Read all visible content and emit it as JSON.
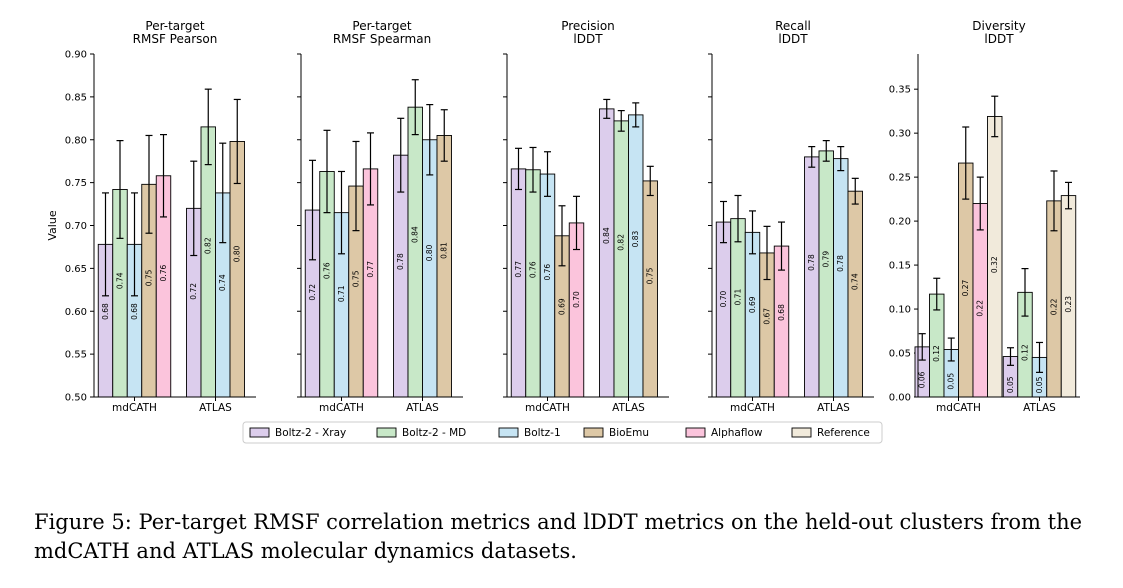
{
  "legend": [
    {
      "name": "Boltz-2 - Xray",
      "color": "#dccdec"
    },
    {
      "name": "Boltz-2 - MD",
      "color": "#c8e8c8"
    },
    {
      "name": "Boltz-1",
      "color": "#c6e4f3"
    },
    {
      "name": "BioEmu",
      "color": "#ddc8a6"
    },
    {
      "name": "Alphaflow",
      "color": "#fbc4dc"
    },
    {
      "name": "Reference",
      "color": "#f1eadb"
    }
  ],
  "caption": "Figure 5:   Per-target RMSF correlation metrics and lDDT metrics on the held-out clusters from the mdCATH and ATLAS molecular dynamics datasets.",
  "chart_data": [
    {
      "type": "bar",
      "title": "Per-target\nRMSF Pearson",
      "ylabel": "Value",
      "ylim": [
        0.5,
        0.9
      ],
      "yticks": [
        "0.50",
        "0.55",
        "0.60",
        "0.65",
        "0.70",
        "0.75",
        "0.80",
        "0.85",
        "0.90"
      ],
      "categories": [
        "mdCATH",
        "ATLAS"
      ],
      "series": [
        {
          "name": "Boltz-2 - Xray",
          "values": [
            0.678,
            0.72
          ],
          "errors": [
            0.06,
            0.055
          ],
          "labels": [
            "0.68",
            "0.72"
          ]
        },
        {
          "name": "Boltz-2 - MD",
          "values": [
            0.742,
            0.815
          ],
          "errors": [
            0.057,
            0.044
          ],
          "labels": [
            "0.74",
            "0.82"
          ]
        },
        {
          "name": "Boltz-1",
          "values": [
            0.678,
            0.738
          ],
          "errors": [
            0.06,
            0.058
          ],
          "labels": [
            "0.68",
            "0.74"
          ]
        },
        {
          "name": "BioEmu",
          "values": [
            0.748,
            0.798
          ],
          "errors": [
            0.057,
            0.049
          ],
          "labels": [
            "0.75",
            "0.80"
          ]
        },
        {
          "name": "Alphaflow",
          "values": [
            0.758,
            null
          ],
          "errors": [
            0.048,
            null
          ],
          "labels": [
            "0.76",
            ""
          ]
        },
        {
          "name": "Reference",
          "values": [
            null,
            null
          ],
          "errors": [
            null,
            null
          ],
          "labels": [
            "",
            ""
          ]
        }
      ]
    },
    {
      "type": "bar",
      "title": "Per-target\nRMSF Spearman",
      "ylim": [
        0.5,
        0.9
      ],
      "categories": [
        "mdCATH",
        "ATLAS"
      ],
      "series": [
        {
          "name": "Boltz-2 - Xray",
          "values": [
            0.718,
            0.782
          ],
          "errors": [
            0.058,
            0.043
          ],
          "labels": [
            "0.72",
            "0.78"
          ]
        },
        {
          "name": "Boltz-2 - MD",
          "values": [
            0.763,
            0.838
          ],
          "errors": [
            0.048,
            0.032
          ],
          "labels": [
            "0.76",
            "0.84"
          ]
        },
        {
          "name": "Boltz-1",
          "values": [
            0.715,
            0.8
          ],
          "errors": [
            0.048,
            0.041
          ],
          "labels": [
            "0.71",
            "0.80"
          ]
        },
        {
          "name": "BioEmu",
          "values": [
            0.746,
            0.805
          ],
          "errors": [
            0.052,
            0.03
          ],
          "labels": [
            "0.75",
            "0.81"
          ]
        },
        {
          "name": "Alphaflow",
          "values": [
            0.766,
            null
          ],
          "errors": [
            0.042,
            null
          ],
          "labels": [
            "0.77",
            ""
          ]
        },
        {
          "name": "Reference",
          "values": [
            null,
            null
          ],
          "errors": [
            null,
            null
          ],
          "labels": [
            "",
            ""
          ]
        }
      ]
    },
    {
      "type": "bar",
      "title": "Precision\nlDDT",
      "ylim": [
        0.5,
        0.9
      ],
      "categories": [
        "mdCATH",
        "ATLAS"
      ],
      "series": [
        {
          "name": "Boltz-2 - Xray",
          "values": [
            0.766,
            0.836
          ],
          "errors": [
            0.024,
            0.011
          ],
          "labels": [
            "0.77",
            "0.84"
          ]
        },
        {
          "name": "Boltz-2 - MD",
          "values": [
            0.765,
            0.822
          ],
          "errors": [
            0.026,
            0.012
          ],
          "labels": [
            "0.76",
            "0.82"
          ]
        },
        {
          "name": "Boltz-1",
          "values": [
            0.76,
            0.829
          ],
          "errors": [
            0.026,
            0.014
          ],
          "labels": [
            "0.76",
            "0.83"
          ]
        },
        {
          "name": "BioEmu",
          "values": [
            0.688,
            0.752
          ],
          "errors": [
            0.035,
            0.017
          ],
          "labels": [
            "0.69",
            "0.75"
          ]
        },
        {
          "name": "Alphaflow",
          "values": [
            0.703,
            null
          ],
          "errors": [
            0.031,
            null
          ],
          "labels": [
            "0.70",
            ""
          ]
        },
        {
          "name": "Reference",
          "values": [
            null,
            null
          ],
          "errors": [
            null,
            null
          ],
          "labels": [
            "",
            ""
          ]
        }
      ]
    },
    {
      "type": "bar",
      "title": "Recall\nlDDT",
      "ylim": [
        0.5,
        0.9
      ],
      "categories": [
        "mdCATH",
        "ATLAS"
      ],
      "series": [
        {
          "name": "Boltz-2 - Xray",
          "values": [
            0.704,
            0.78
          ],
          "errors": [
            0.024,
            0.012
          ],
          "labels": [
            "0.70",
            "0.78"
          ]
        },
        {
          "name": "Boltz-2 - MD",
          "values": [
            0.708,
            0.787
          ],
          "errors": [
            0.027,
            0.012
          ],
          "labels": [
            "0.71",
            "0.79"
          ]
        },
        {
          "name": "Boltz-1",
          "values": [
            0.692,
            0.778
          ],
          "errors": [
            0.025,
            0.014
          ],
          "labels": [
            "0.69",
            "0.78"
          ]
        },
        {
          "name": "BioEmu",
          "values": [
            0.668,
            0.74
          ],
          "errors": [
            0.031,
            0.015
          ],
          "labels": [
            "0.67",
            "0.74"
          ]
        },
        {
          "name": "Alphaflow",
          "values": [
            0.676,
            null
          ],
          "errors": [
            0.028,
            null
          ],
          "labels": [
            "0.68",
            ""
          ]
        },
        {
          "name": "Reference",
          "values": [
            null,
            null
          ],
          "errors": [
            null,
            null
          ],
          "labels": [
            "",
            ""
          ]
        }
      ]
    },
    {
      "type": "bar",
      "title": "Diversity\nlDDT",
      "ylim": [
        0.0,
        0.39
      ],
      "yticks": [
        "0.00",
        "0.05",
        "0.10",
        "0.15",
        "0.20",
        "0.25",
        "0.30",
        "0.35"
      ],
      "categories": [
        "mdCATH",
        "ATLAS"
      ],
      "series": [
        {
          "name": "Boltz-2 - Xray",
          "values": [
            0.057,
            0.046
          ],
          "errors": [
            0.015,
            0.01
          ],
          "labels": [
            "0.06",
            "0.05"
          ]
        },
        {
          "name": "Boltz-2 - MD",
          "values": [
            0.117,
            0.119
          ],
          "errors": [
            0.018,
            0.027
          ],
          "labels": [
            "0.12",
            "0.12"
          ]
        },
        {
          "name": "Boltz-1",
          "values": [
            0.054,
            0.045
          ],
          "errors": [
            0.013,
            0.017
          ],
          "labels": [
            "0.05",
            "0.05"
          ]
        },
        {
          "name": "BioEmu",
          "values": [
            0.266,
            0.223
          ],
          "errors": [
            0.041,
            0.034
          ],
          "labels": [
            "0.27",
            "0.22"
          ]
        },
        {
          "name": "Alphaflow",
          "values": [
            0.22,
            null
          ],
          "errors": [
            0.03,
            null
          ],
          "labels": [
            "0.22",
            ""
          ]
        },
        {
          "name": "Reference",
          "values": [
            0.319,
            0.229
          ],
          "errors": [
            0.023,
            0.015
          ],
          "labels": [
            "0.32",
            "0.23"
          ]
        }
      ]
    }
  ]
}
